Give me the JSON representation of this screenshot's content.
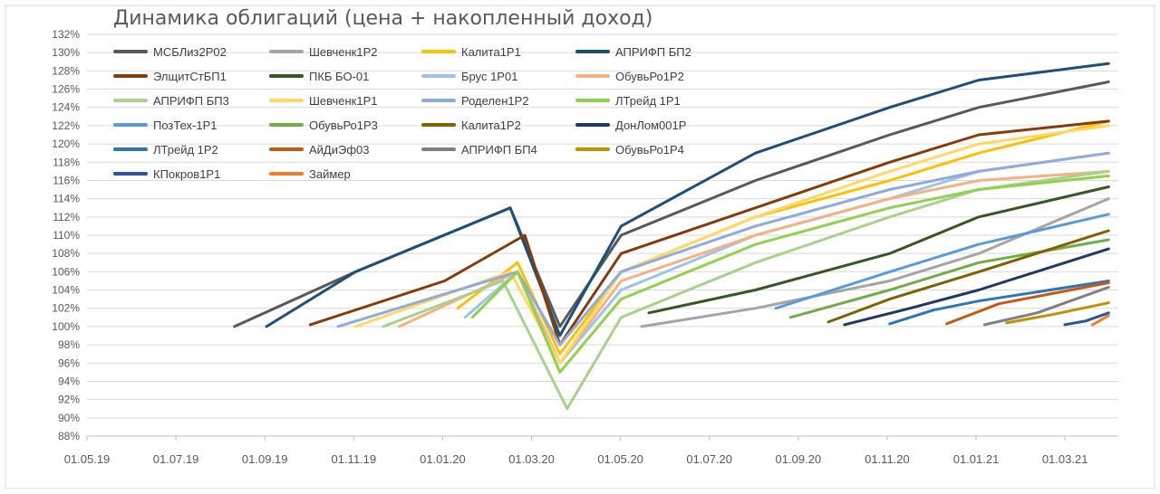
{
  "chart_data": {
    "type": "line",
    "title": "Динамика облигаций (цена + накопленный доход)",
    "xlabel": "",
    "ylabel": "",
    "x_ticks": [
      "01.05.19",
      "01.07.19",
      "01.09.19",
      "01.11.19",
      "01.01.20",
      "01.03.20",
      "01.05.20",
      "01.07.20",
      "01.09.20",
      "01.11.20",
      "01.01.21",
      "01.03.21"
    ],
    "y_ticks": [
      "88%",
      "90%",
      "92%",
      "94%",
      "96%",
      "98%",
      "100%",
      "102%",
      "104%",
      "106%",
      "108%",
      "110%",
      "112%",
      "114%",
      "116%",
      "118%",
      "120%",
      "122%",
      "124%",
      "126%",
      "128%",
      "130%",
      "132%"
    ],
    "ylim": [
      88,
      132
    ],
    "grid": "horizontal",
    "legend_position": "top-left",
    "series": [
      {
        "name": "МСБЛиз2Р02",
        "color": "#595959",
        "points": [
          [
            "2019-08-10",
            100
          ],
          [
            "2019-11-01",
            106
          ],
          [
            "2020-02-15",
            113
          ],
          [
            "2020-03-20",
            100
          ],
          [
            "2020-05-01",
            110
          ],
          [
            "2020-08-01",
            116
          ],
          [
            "2020-11-01",
            121
          ],
          [
            "2021-01-01",
            124
          ],
          [
            "2021-03-31",
            126.8
          ]
        ]
      },
      {
        "name": "Шевченк1Р2",
        "color": "#a5a5a5",
        "points": [
          [
            "2020-05-15",
            100
          ],
          [
            "2020-08-01",
            102
          ],
          [
            "2020-11-01",
            105
          ],
          [
            "2021-01-01",
            108
          ],
          [
            "2021-03-31",
            114
          ]
        ]
      },
      {
        "name": "Калита1Р1",
        "color": "#ffc000",
        "points": [
          [
            "2020-01-10",
            102
          ],
          [
            "2020-02-20",
            107
          ],
          [
            "2020-03-20",
            97
          ],
          [
            "2020-05-01",
            106
          ],
          [
            "2020-08-01",
            112
          ],
          [
            "2020-11-01",
            116
          ],
          [
            "2021-01-01",
            119
          ],
          [
            "2021-03-31",
            122.5
          ]
        ]
      },
      {
        "name": "АПРИФП БП2",
        "color": "#1f4e79",
        "points": [
          [
            "2019-09-01",
            100
          ],
          [
            "2019-11-01",
            106
          ],
          [
            "2020-02-15",
            113
          ],
          [
            "2020-03-20",
            99
          ],
          [
            "2020-05-01",
            111
          ],
          [
            "2020-08-01",
            119
          ],
          [
            "2020-11-01",
            124
          ],
          [
            "2021-01-01",
            127
          ],
          [
            "2021-03-31",
            128.8
          ]
        ]
      },
      {
        "name": "ЭлщитСтБП1",
        "color": "#843c0c",
        "points": [
          [
            "2019-10-01",
            100.2
          ],
          [
            "2020-01-01",
            105
          ],
          [
            "2020-02-25",
            110
          ],
          [
            "2020-03-20",
            98
          ],
          [
            "2020-05-01",
            108
          ],
          [
            "2020-08-01",
            113
          ],
          [
            "2020-11-01",
            118
          ],
          [
            "2021-01-01",
            121
          ],
          [
            "2021-03-31",
            122.5
          ]
        ]
      },
      {
        "name": "ПКБ БО-01",
        "color": "#375623",
        "points": [
          [
            "2020-05-20",
            101.5
          ],
          [
            "2020-08-01",
            104
          ],
          [
            "2020-11-01",
            108
          ],
          [
            "2021-01-01",
            112
          ],
          [
            "2021-03-31",
            115.3
          ]
        ]
      },
      {
        "name": "Брус 1Р01",
        "color": "#9dc3e6",
        "points": [
          [
            "2020-01-15",
            101
          ],
          [
            "2020-02-20",
            106
          ],
          [
            "2020-03-20",
            96
          ],
          [
            "2020-05-01",
            104
          ],
          [
            "2020-08-01",
            110
          ],
          [
            "2020-11-01",
            114
          ],
          [
            "2021-01-01",
            117
          ],
          [
            "2021-03-31",
            119
          ]
        ]
      },
      {
        "name": "ОбувьРо1Р2",
        "color": "#f4b183",
        "points": [
          [
            "2019-12-01",
            100
          ],
          [
            "2020-02-20",
            106
          ],
          [
            "2020-03-20",
            96
          ],
          [
            "2020-05-01",
            105
          ],
          [
            "2020-08-01",
            110
          ],
          [
            "2020-11-01",
            114
          ],
          [
            "2021-01-01",
            116
          ],
          [
            "2021-03-31",
            117
          ]
        ]
      },
      {
        "name": "АПРИФП БП3",
        "color": "#a9d18e",
        "points": [
          [
            "2019-11-20",
            100
          ],
          [
            "2020-02-10",
            105
          ],
          [
            "2020-03-25",
            91
          ],
          [
            "2020-05-01",
            101
          ],
          [
            "2020-08-01",
            107
          ],
          [
            "2020-11-01",
            112
          ],
          [
            "2021-01-01",
            115
          ],
          [
            "2021-03-31",
            117
          ]
        ]
      },
      {
        "name": "Шевченк1Р1",
        "color": "#ffd966",
        "points": [
          [
            "2019-11-01",
            100
          ],
          [
            "2020-02-15",
            106
          ],
          [
            "2020-03-20",
            96
          ],
          [
            "2020-05-01",
            106
          ],
          [
            "2020-08-01",
            112
          ],
          [
            "2020-11-01",
            117
          ],
          [
            "2021-01-01",
            120
          ],
          [
            "2021-03-31",
            122
          ]
        ]
      },
      {
        "name": "Роделен1Р2",
        "color": "#8faadc",
        "points": [
          [
            "2019-10-20",
            100
          ],
          [
            "2020-02-20",
            106
          ],
          [
            "2020-03-20",
            98
          ],
          [
            "2020-05-01",
            106
          ],
          [
            "2020-08-01",
            111
          ],
          [
            "2020-11-01",
            115
          ],
          [
            "2021-01-01",
            117
          ],
          [
            "2021-03-31",
            119
          ]
        ]
      },
      {
        "name": "ЛТрейд 1Р1",
        "color": "#92d050",
        "points": [
          [
            "2020-01-20",
            101
          ],
          [
            "2020-02-20",
            106
          ],
          [
            "2020-03-20",
            95
          ],
          [
            "2020-05-01",
            103
          ],
          [
            "2020-08-01",
            109
          ],
          [
            "2020-11-01",
            113
          ],
          [
            "2021-01-01",
            115
          ],
          [
            "2021-03-31",
            116.5
          ]
        ]
      },
      {
        "name": "ПозТех-1Р1",
        "color": "#5b9bd5",
        "points": [
          [
            "2020-08-15",
            102
          ],
          [
            "2020-11-01",
            106
          ],
          [
            "2021-01-01",
            109
          ],
          [
            "2021-03-31",
            112.3
          ]
        ]
      },
      {
        "name": "ОбувьРо1Р3",
        "color": "#70ad47",
        "points": [
          [
            "2020-08-25",
            101
          ],
          [
            "2020-11-01",
            104
          ],
          [
            "2021-01-01",
            107
          ],
          [
            "2021-03-31",
            109.5
          ]
        ]
      },
      {
        "name": "Калита1Р2",
        "color": "#806000",
        "points": [
          [
            "2020-09-20",
            100.5
          ],
          [
            "2020-11-01",
            103
          ],
          [
            "2021-01-01",
            106
          ],
          [
            "2021-03-31",
            110.5
          ]
        ]
      },
      {
        "name": "ДонЛом001Р",
        "color": "#203864",
        "points": [
          [
            "2020-10-01",
            100.2
          ],
          [
            "2020-11-15",
            102
          ],
          [
            "2021-01-01",
            104
          ],
          [
            "2021-03-31",
            108.5
          ]
        ]
      },
      {
        "name": "ЛТрейд 1Р2",
        "color": "#2e75b6",
        "points": [
          [
            "2020-11-01",
            100.3
          ],
          [
            "2020-12-01",
            101.8
          ],
          [
            "2021-01-01",
            102.8
          ],
          [
            "2021-03-31",
            105
          ]
        ]
      },
      {
        "name": "АйДиЭф03",
        "color": "#c55a11",
        "points": [
          [
            "2020-12-10",
            100.3
          ],
          [
            "2021-01-15",
            102.5
          ],
          [
            "2021-03-31",
            104.8
          ]
        ]
      },
      {
        "name": "АПРИФП БП4",
        "color": "#7f7f7f",
        "points": [
          [
            "2021-01-05",
            100.2
          ],
          [
            "2021-02-10",
            101.5
          ],
          [
            "2021-03-31",
            104.3
          ]
        ]
      },
      {
        "name": "ОбувьРо1Р4",
        "color": "#bf9000",
        "points": [
          [
            "2021-01-20",
            100.4
          ],
          [
            "2021-02-20",
            101.3
          ],
          [
            "2021-03-31",
            102.6
          ]
        ]
      },
      {
        "name": "КПокров1Р1",
        "color": "#2f5597",
        "points": [
          [
            "2021-03-01",
            100.2
          ],
          [
            "2021-03-15",
            100.6
          ],
          [
            "2021-03-31",
            101.5
          ]
        ]
      },
      {
        "name": "Займер",
        "color": "#ed7d31",
        "points": [
          [
            "2021-03-20",
            100.2
          ],
          [
            "2021-03-31",
            101.2
          ]
        ]
      }
    ]
  }
}
